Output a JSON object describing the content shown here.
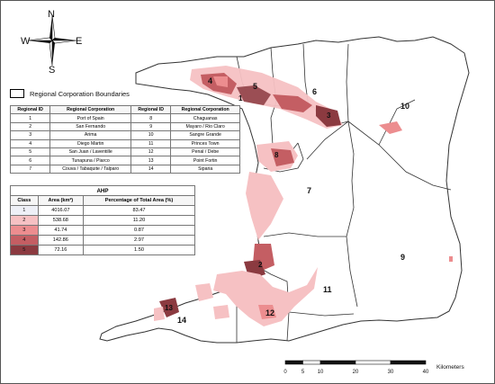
{
  "compass": {
    "n": "N",
    "s": "S",
    "e": "E",
    "w": "W"
  },
  "boundary_legend": {
    "label": "Regional Corporation Boundaries"
  },
  "region_labels": [
    {
      "id": "1"
    },
    {
      "id": "2"
    },
    {
      "id": "3"
    },
    {
      "id": "4"
    },
    {
      "id": "5"
    },
    {
      "id": "6"
    },
    {
      "id": "7"
    },
    {
      "id": "8"
    },
    {
      "id": "9"
    },
    {
      "id": "10"
    },
    {
      "id": "11"
    },
    {
      "id": "12"
    },
    {
      "id": "13"
    },
    {
      "id": "14"
    }
  ],
  "corporation_table": {
    "headers": [
      "Regional ID",
      "Regional Corporation",
      "Regional ID",
      "Regional Corporation"
    ],
    "rows": [
      [
        "1",
        "Port of Spain",
        "8",
        "Chaguanas"
      ],
      [
        "2",
        "San Fernando",
        "9",
        "Mayaro / Rio Claro"
      ],
      [
        "3",
        "Arima",
        "10",
        "Sangre Grande"
      ],
      [
        "4",
        "Diego Martin",
        "11",
        "Princes Town"
      ],
      [
        "5",
        "San Juan / Laventille",
        "12",
        "Penal / Debe"
      ],
      [
        "6",
        "Tunapuna / Piarco",
        "13",
        "Point Fortin"
      ],
      [
        "7",
        "Couva / Tabaquite / Talparo",
        "14",
        "Siparia"
      ]
    ]
  },
  "ahp_table": {
    "title": "AHP",
    "headers": [
      "Class",
      "Area (km²)",
      "Percentage of Total Area (%)"
    ],
    "rows": [
      {
        "cls": "1",
        "area": "4016.07",
        "pct": "83.47",
        "color": "#eef0f7"
      },
      {
        "cls": "2",
        "area": "538.68",
        "pct": "11.20",
        "color": "#f6c1c3"
      },
      {
        "cls": "3",
        "area": "41.74",
        "pct": "0.87",
        "color": "#ec8d8f"
      },
      {
        "cls": "4",
        "area": "142.86",
        "pct": "2.97",
        "color": "#c45e63"
      },
      {
        "cls": "5",
        "area": "72.16",
        "pct": "1.50",
        "color": "#8b3a40"
      }
    ]
  },
  "scale": {
    "unit": "Kilometers",
    "ticks": [
      "0",
      "5",
      "10",
      "20",
      "30",
      "40"
    ]
  },
  "colors": {
    "land": "#ffffff",
    "outline": "#333333",
    "class2": "#f6c1c3",
    "class3": "#ec8d8f",
    "class4": "#c45e63",
    "class5": "#8b3a40"
  }
}
